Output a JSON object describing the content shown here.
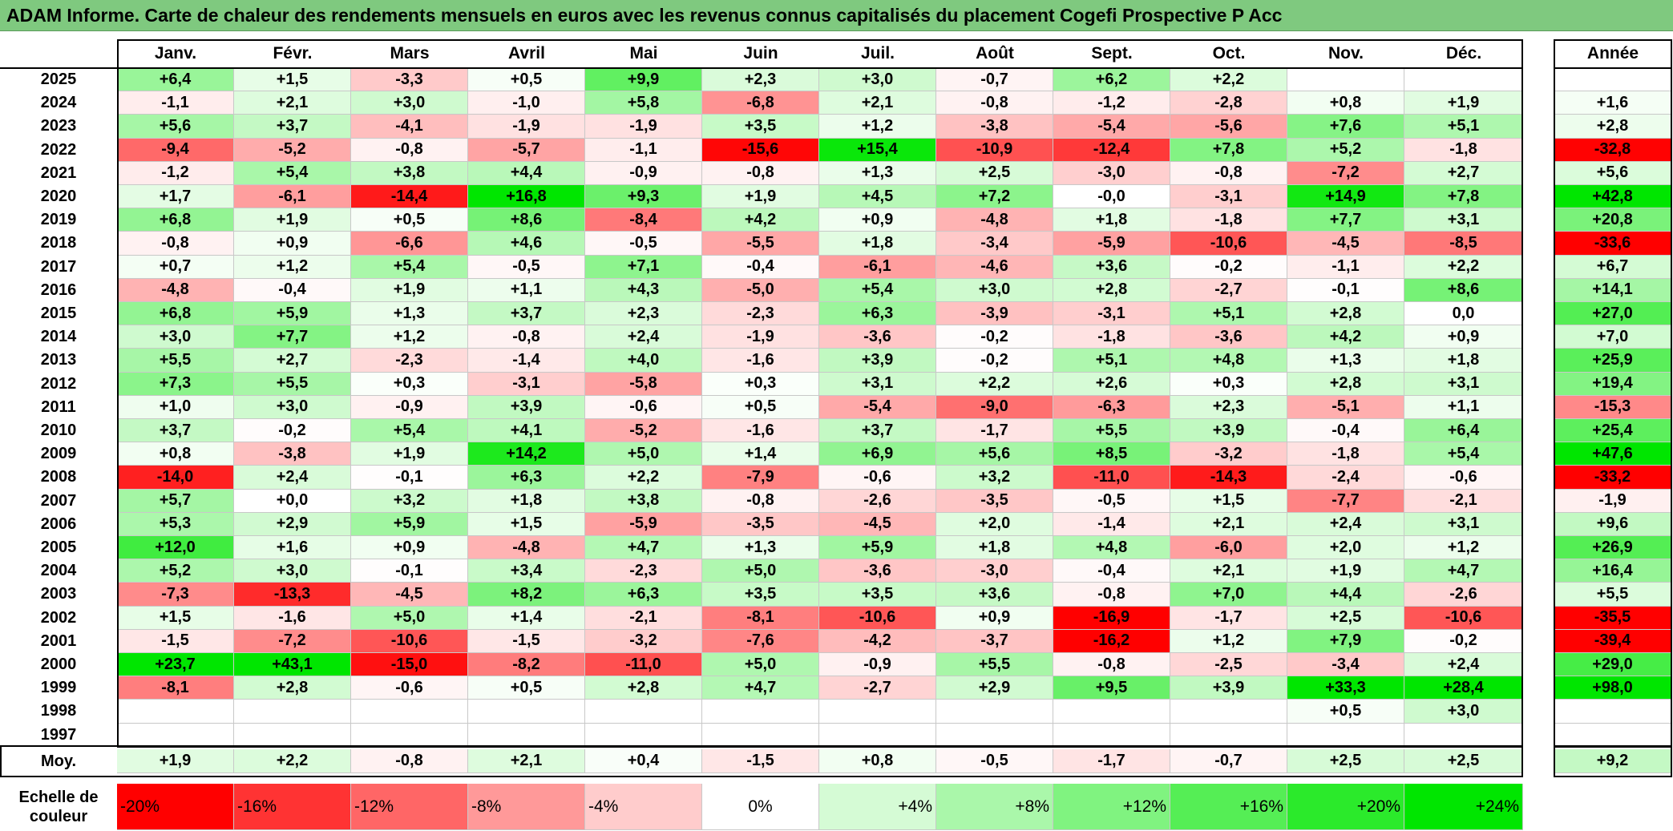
{
  "title": "ADAM Informe. Carte de chaleur des rendements mensuels en euros avec les revenus connus capitalisés du placement Cogefi Prospective P Acc",
  "colors": {
    "title_bg": "#7fc97f",
    "neg_max": "#ff0000",
    "pos_max": "#00e600",
    "neutral": "#ffffff"
  },
  "chart_data": {
    "type": "heatmap",
    "title": "ADAM Informe. Carte de chaleur des rendements mensuels en euros avec les revenus connus capitalisés du placement Cogefi Prospective P Acc",
    "columns": [
      "Janv.",
      "Févr.",
      "Mars",
      "Avril",
      "Mai",
      "Juin",
      "Juil.",
      "Août",
      "Sept.",
      "Oct.",
      "Nov.",
      "Déc."
    ],
    "year_header": "Année",
    "rows": [
      {
        "year": "2025",
        "values": [
          "+6,4",
          "+1,5",
          "-3,3",
          "+0,5",
          "+9,9",
          "+2,3",
          "+3,0",
          "-0,7",
          "+6,2",
          "+2,2",
          "",
          ""
        ],
        "annual": ""
      },
      {
        "year": "2024",
        "values": [
          "-1,1",
          "+2,1",
          "+3,0",
          "-1,0",
          "+5,8",
          "-6,8",
          "+2,1",
          "-0,8",
          "-1,2",
          "-2,8",
          "+0,8",
          "+1,9"
        ],
        "annual": "+1,6"
      },
      {
        "year": "2023",
        "values": [
          "+5,6",
          "+3,7",
          "-4,1",
          "-1,9",
          "-1,9",
          "+3,5",
          "+1,2",
          "-3,8",
          "-5,4",
          "-5,6",
          "+7,6",
          "+5,1"
        ],
        "annual": "+2,8"
      },
      {
        "year": "2022",
        "values": [
          "-9,4",
          "-5,2",
          "-0,8",
          "-5,7",
          "-1,1",
          "-15,6",
          "+15,4",
          "-10,9",
          "-12,4",
          "+7,8",
          "+5,2",
          "-1,8"
        ],
        "annual": "-32,8"
      },
      {
        "year": "2021",
        "values": [
          "-1,2",
          "+5,4",
          "+3,8",
          "+4,4",
          "-0,9",
          "-0,8",
          "+1,3",
          "+2,5",
          "-3,0",
          "-0,8",
          "-7,2",
          "+2,7"
        ],
        "annual": "+5,6"
      },
      {
        "year": "2020",
        "values": [
          "+1,7",
          "-6,1",
          "-14,4",
          "+16,8",
          "+9,3",
          "+1,9",
          "+4,5",
          "+7,2",
          "-0,0",
          "-3,1",
          "+14,9",
          "+7,8"
        ],
        "annual": "+42,8"
      },
      {
        "year": "2019",
        "values": [
          "+6,8",
          "+1,9",
          "+0,5",
          "+8,6",
          "-8,4",
          "+4,2",
          "+0,9",
          "-4,8",
          "+1,8",
          "-1,8",
          "+7,7",
          "+3,1"
        ],
        "annual": "+20,8"
      },
      {
        "year": "2018",
        "values": [
          "-0,8",
          "+0,9",
          "-6,6",
          "+4,6",
          "-0,5",
          "-5,5",
          "+1,8",
          "-3,4",
          "-5,9",
          "-10,6",
          "-4,5",
          "-8,5"
        ],
        "annual": "-33,6"
      },
      {
        "year": "2017",
        "values": [
          "+0,7",
          "+1,2",
          "+5,4",
          "-0,5",
          "+7,1",
          "-0,4",
          "-6,1",
          "-4,6",
          "+3,6",
          "-0,2",
          "-1,1",
          "+2,2"
        ],
        "annual": "+6,7"
      },
      {
        "year": "2016",
        "values": [
          "-4,8",
          "-0,4",
          "+1,9",
          "+1,1",
          "+4,3",
          "-5,0",
          "+5,4",
          "+3,0",
          "+2,8",
          "-2,7",
          "-0,1",
          "+8,6"
        ],
        "annual": "+14,1"
      },
      {
        "year": "2015",
        "values": [
          "+6,8",
          "+5,9",
          "+1,3",
          "+3,7",
          "+2,3",
          "-2,3",
          "+6,3",
          "-3,9",
          "-3,1",
          "+5,1",
          "+2,8",
          "0,0"
        ],
        "annual": "+27,0"
      },
      {
        "year": "2014",
        "values": [
          "+3,0",
          "+7,7",
          "+1,2",
          "-0,8",
          "+2,4",
          "-1,9",
          "-3,6",
          "-0,2",
          "-1,8",
          "-3,6",
          "+4,2",
          "+0,9"
        ],
        "annual": "+7,0"
      },
      {
        "year": "2013",
        "values": [
          "+5,5",
          "+2,7",
          "-2,3",
          "-1,4",
          "+4,0",
          "-1,6",
          "+3,9",
          "-0,2",
          "+5,1",
          "+4,8",
          "+1,3",
          "+1,8"
        ],
        "annual": "+25,9"
      },
      {
        "year": "2012",
        "values": [
          "+7,3",
          "+5,5",
          "+0,3",
          "-3,1",
          "-5,8",
          "+0,3",
          "+3,1",
          "+2,2",
          "+2,6",
          "+0,3",
          "+2,8",
          "+3,1"
        ],
        "annual": "+19,4"
      },
      {
        "year": "2011",
        "values": [
          "+1,0",
          "+3,0",
          "-0,9",
          "+3,9",
          "-0,6",
          "+0,5",
          "-5,4",
          "-9,0",
          "-6,3",
          "+2,3",
          "-5,1",
          "+1,1"
        ],
        "annual": "-15,3"
      },
      {
        "year": "2010",
        "values": [
          "+3,7",
          "-0,2",
          "+5,4",
          "+4,1",
          "-5,2",
          "-1,6",
          "+3,7",
          "-1,7",
          "+5,5",
          "+3,9",
          "-0,4",
          "+6,4"
        ],
        "annual": "+25,4"
      },
      {
        "year": "2009",
        "values": [
          "+0,8",
          "-3,8",
          "+1,9",
          "+14,2",
          "+5,0",
          "+1,4",
          "+6,9",
          "+5,6",
          "+8,5",
          "-3,2",
          "-1,8",
          "+5,4"
        ],
        "annual": "+47,6"
      },
      {
        "year": "2008",
        "values": [
          "-14,0",
          "+2,4",
          "-0,1",
          "+6,3",
          "+2,2",
          "-7,9",
          "-0,6",
          "+3,2",
          "-11,0",
          "-14,3",
          "-2,4",
          "-0,6"
        ],
        "annual": "-33,2"
      },
      {
        "year": "2007",
        "values": [
          "+5,7",
          "+0,0",
          "+3,2",
          "+1,8",
          "+3,8",
          "-0,8",
          "-2,6",
          "-3,5",
          "-0,5",
          "+1,5",
          "-7,7",
          "-2,1"
        ],
        "annual": "-1,9"
      },
      {
        "year": "2006",
        "values": [
          "+5,3",
          "+2,9",
          "+5,9",
          "+1,5",
          "-5,9",
          "-3,5",
          "-4,5",
          "+2,0",
          "-1,4",
          "+2,1",
          "+2,4",
          "+3,1"
        ],
        "annual": "+9,6"
      },
      {
        "year": "2005",
        "values": [
          "+12,0",
          "+1,6",
          "+0,9",
          "-4,8",
          "+4,7",
          "+1,3",
          "+5,9",
          "+1,8",
          "+4,8",
          "-6,0",
          "+2,0",
          "+1,2"
        ],
        "annual": "+26,9"
      },
      {
        "year": "2004",
        "values": [
          "+5,2",
          "+3,0",
          "-0,1",
          "+3,4",
          "-2,3",
          "+5,0",
          "-3,6",
          "-3,0",
          "-0,4",
          "+2,1",
          "+1,9",
          "+4,7"
        ],
        "annual": "+16,4"
      },
      {
        "year": "2003",
        "values": [
          "-7,3",
          "-13,3",
          "-4,5",
          "+8,2",
          "+6,3",
          "+3,5",
          "+3,5",
          "+3,6",
          "-0,8",
          "+7,0",
          "+4,4",
          "-2,6"
        ],
        "annual": "+5,5"
      },
      {
        "year": "2002",
        "values": [
          "+1,5",
          "-1,6",
          "+5,0",
          "+1,4",
          "-2,1",
          "-8,1",
          "-10,6",
          "+0,9",
          "-16,9",
          "-1,7",
          "+2,5",
          "-10,6"
        ],
        "annual": "-35,5"
      },
      {
        "year": "2001",
        "values": [
          "-1,5",
          "-7,2",
          "-10,6",
          "-1,5",
          "-3,2",
          "-7,6",
          "-4,2",
          "-3,7",
          "-16,2",
          "+1,2",
          "+7,9",
          "-0,2"
        ],
        "annual": "-39,4"
      },
      {
        "year": "2000",
        "values": [
          "+23,7",
          "+43,1",
          "-15,0",
          "-8,2",
          "-11,0",
          "+5,0",
          "-0,9",
          "+5,5",
          "-0,8",
          "-2,5",
          "-3,4",
          "+2,4"
        ],
        "annual": "+29,0"
      },
      {
        "year": "1999",
        "values": [
          "-8,1",
          "+2,8",
          "-0,6",
          "+0,5",
          "+2,8",
          "+4,7",
          "-2,7",
          "+2,9",
          "+9,5",
          "+3,9",
          "+33,3",
          "+28,4"
        ],
        "annual": "+98,0"
      },
      {
        "year": "1998",
        "values": [
          "",
          "",
          "",
          "",
          "",
          "",
          "",
          "",
          "",
          "",
          "+0,5",
          "+3,0"
        ],
        "annual": ""
      },
      {
        "year": "1997",
        "values": [
          "",
          "",
          "",
          "",
          "",
          "",
          "",
          "",
          "",
          "",
          "",
          ""
        ],
        "annual": ""
      }
    ],
    "average": {
      "label": "Moy.",
      "values": [
        "+1,9",
        "+2,2",
        "-0,8",
        "+2,1",
        "+0,4",
        "-1,5",
        "+0,8",
        "-0,5",
        "-1,7",
        "-0,7",
        "+2,5",
        "+2,5"
      ],
      "annual": "+9,2"
    },
    "scale": {
      "label": "Echelle de couleur",
      "steps": [
        "-20%",
        "-16%",
        "-12%",
        "-8%",
        "-4%",
        "0%",
        "+4%",
        "+8%",
        "+12%",
        "+16%",
        "+20%",
        "+24%"
      ]
    }
  }
}
